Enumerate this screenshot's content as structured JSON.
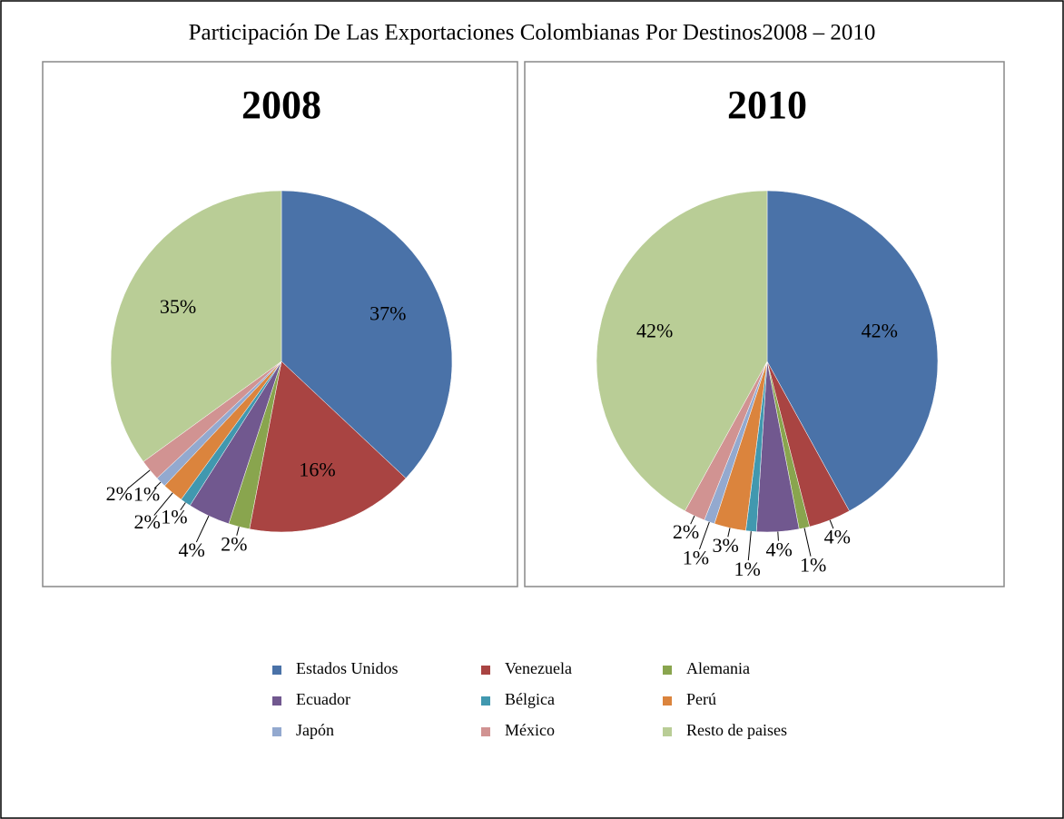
{
  "title": "Participación De Las Exportaciones Colombianas Por Destinos2008 – 2010",
  "legend": {
    "items": [
      "Estados Unidos",
      "Venezuela",
      "Alemania",
      "Ecuador",
      "Bélgica",
      "Perú",
      "Japón",
      "México",
      "Resto de paises"
    ],
    "colors": [
      "#4a72a8",
      "#a94442",
      "#89a54e",
      "#71588f",
      "#4198af",
      "#db843d",
      "#93a9cf",
      "#d19392",
      "#b9cd96"
    ]
  },
  "chart_data": [
    {
      "type": "pie",
      "title": "2008",
      "values": [
        37,
        16,
        2,
        4,
        1,
        2,
        1,
        2,
        35
      ],
      "value_labels": [
        "37%",
        "16%",
        "2%",
        "4%",
        "1%",
        "2%",
        "1%",
        "2%",
        "35%"
      ]
    },
    {
      "type": "pie",
      "title": "2010",
      "values": [
        42,
        4,
        1,
        4,
        1,
        3,
        1,
        2,
        42
      ],
      "value_labels": [
        "42%",
        "4%",
        "1%",
        "4%",
        "1%",
        "3%",
        "1%",
        "2%",
        "42%"
      ]
    }
  ]
}
